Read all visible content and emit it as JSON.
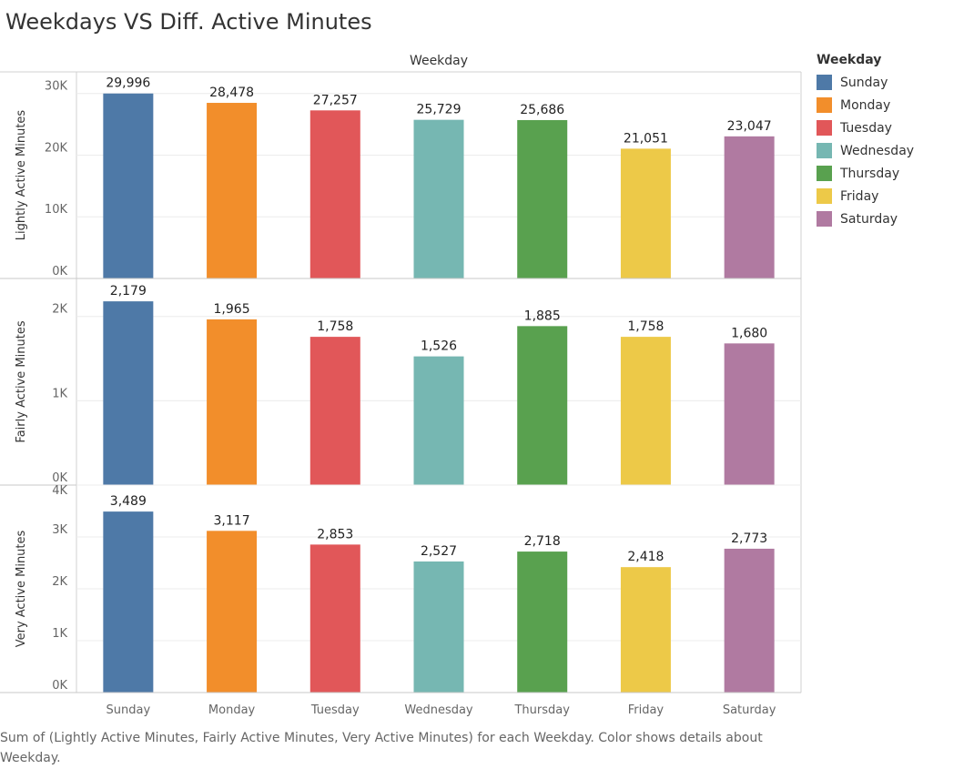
{
  "title": "Weekdays VS Diff. Active Minutes",
  "column_header": "Weekday",
  "caption": "Sum of (Lightly Active Minutes, Fairly Active Minutes, Very Active Minutes) for each Weekday.  Color shows details about Weekday.",
  "legend": {
    "title": "Weekday",
    "items": [
      {
        "label": "Sunday",
        "color": "#4e79a7"
      },
      {
        "label": "Monday",
        "color": "#f28e2b"
      },
      {
        "label": "Tuesday",
        "color": "#e15759"
      },
      {
        "label": "Wednesday",
        "color": "#76b7b2"
      },
      {
        "label": "Thursday",
        "color": "#59a14f"
      },
      {
        "label": "Friday",
        "color": "#edc948"
      },
      {
        "label": "Saturday",
        "color": "#b07aa1"
      }
    ]
  },
  "chart_data": {
    "type": "bar",
    "categories": [
      "Sunday",
      "Monday",
      "Tuesday",
      "Wednesday",
      "Thursday",
      "Friday",
      "Saturday"
    ],
    "xlabel": "Weekday",
    "panels": [
      {
        "ylabel": "Lightly Active Minutes",
        "values": [
          29996,
          28478,
          27257,
          25729,
          25686,
          21051,
          23047
        ],
        "value_labels": [
          "29,996",
          "28,478",
          "27,257",
          "25,729",
          "25,686",
          "21,051",
          "23,047"
        ],
        "ylim": [
          0,
          33500
        ],
        "ticks": [
          0,
          10000,
          20000,
          30000
        ],
        "tick_labels": [
          "0K",
          "10K",
          "20K",
          "30K"
        ]
      },
      {
        "ylabel": "Fairly Active Minutes",
        "values": [
          2179,
          1965,
          1758,
          1526,
          1885,
          1758,
          1680
        ],
        "value_labels": [
          "2,179",
          "1,965",
          "1,758",
          "1,526",
          "1,885",
          "1,758",
          "1,680"
        ],
        "ylim": [
          0,
          2450
        ],
        "ticks": [
          0,
          1000,
          2000
        ],
        "tick_labels": [
          "0K",
          "1K",
          "2K"
        ]
      },
      {
        "ylabel": "Very Active Minutes",
        "values": [
          3489,
          3117,
          2853,
          2527,
          2718,
          2418,
          2773
        ],
        "value_labels": [
          "3,489",
          "3,117",
          "2,853",
          "2,527",
          "2,718",
          "2,418",
          "2,773"
        ],
        "ylim": [
          0,
          4000
        ],
        "ticks": [
          0,
          1000,
          2000,
          3000,
          4000
        ],
        "tick_labels": [
          "0K",
          "1K",
          "2K",
          "3K",
          "4K"
        ]
      }
    ],
    "grid": true,
    "legend_position": "right"
  }
}
